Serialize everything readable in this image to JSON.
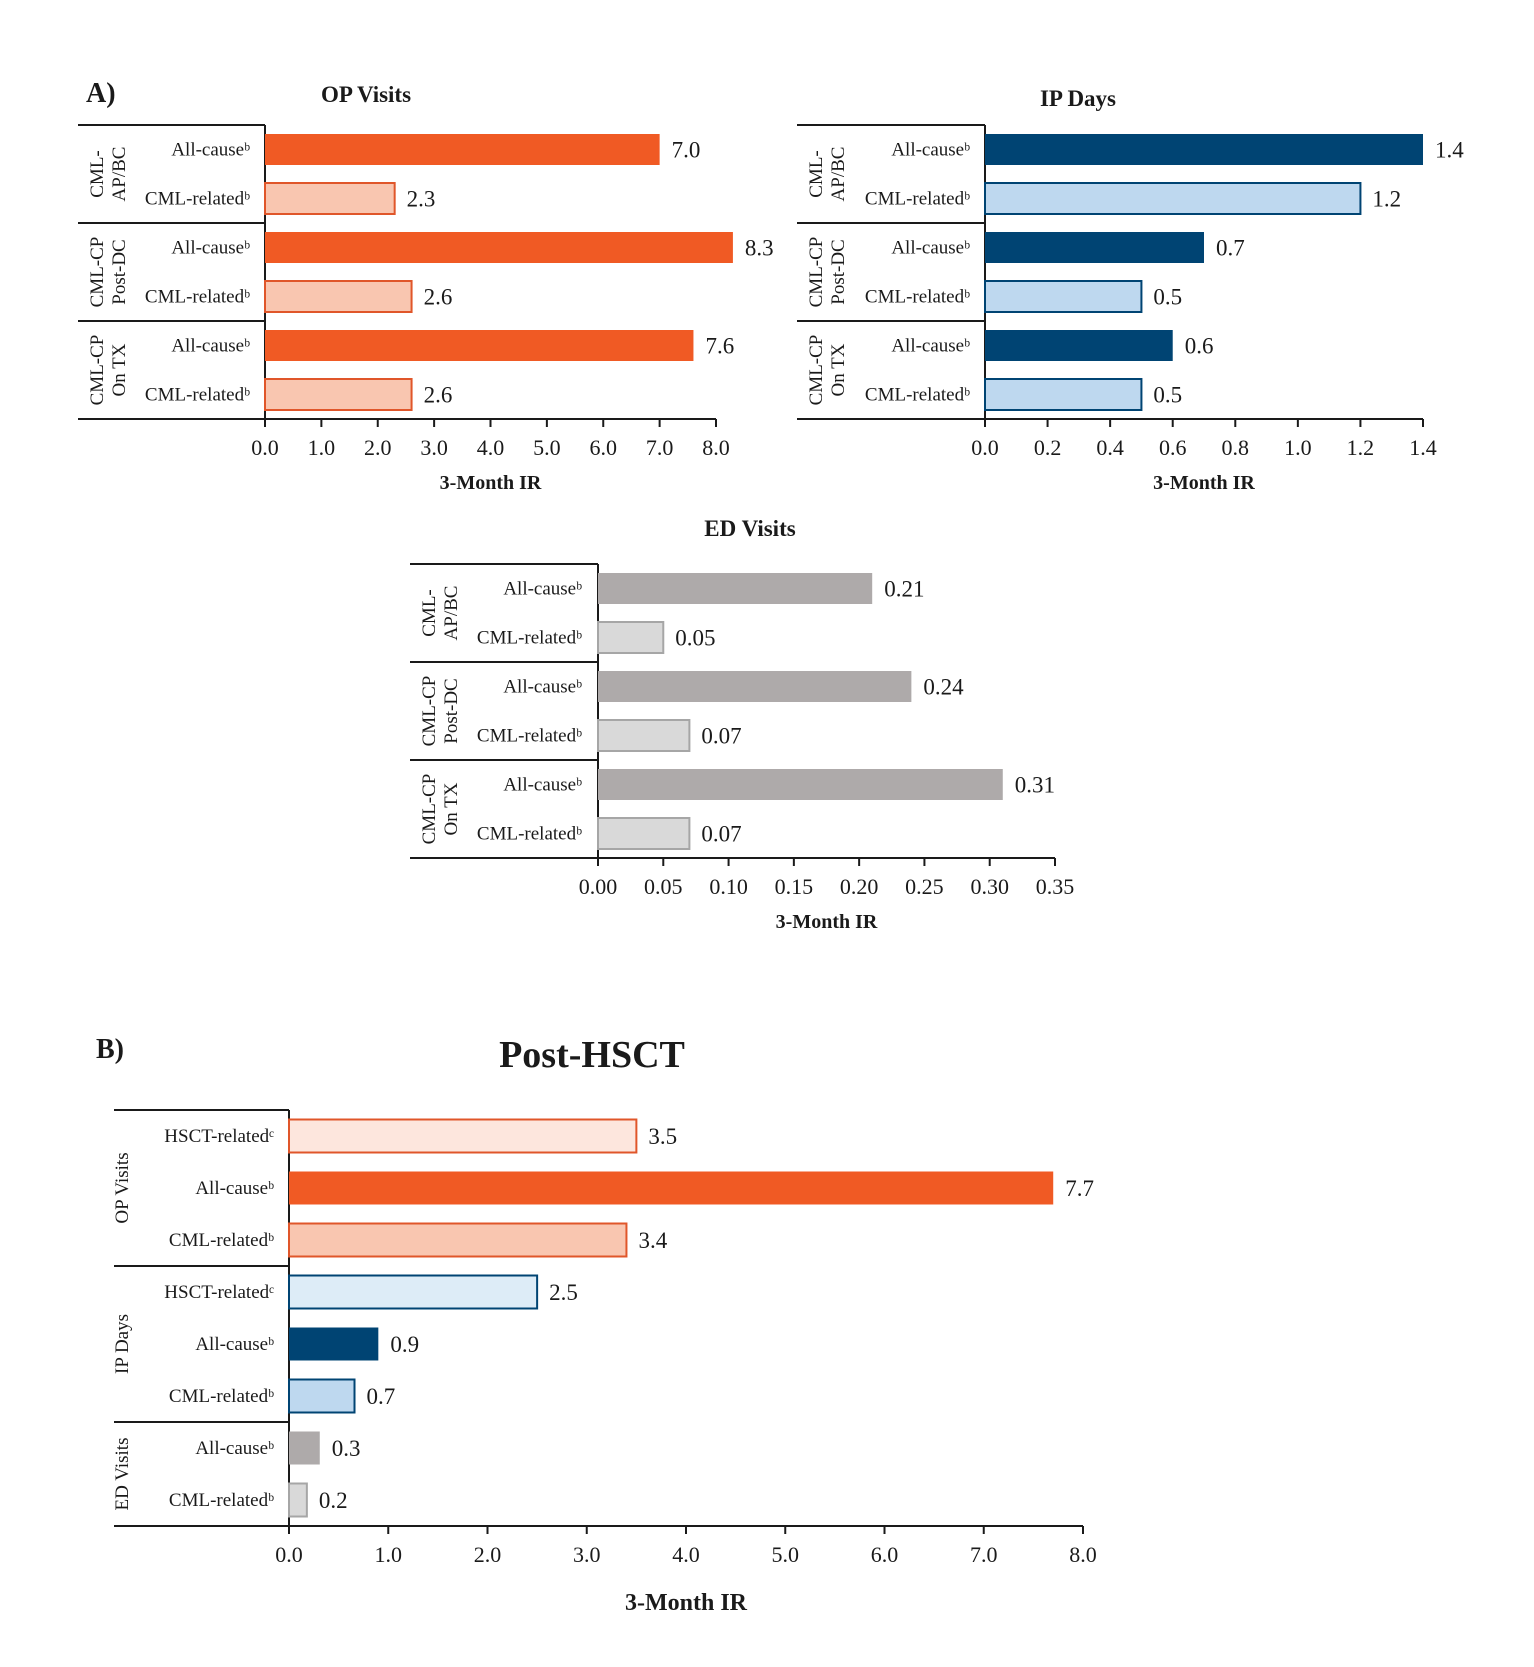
{
  "panel_a_label": "A)",
  "panel_b_label": "B)",
  "colors": {
    "op_dark": "#f05a24",
    "op_light": "#f9c6b0",
    "op_light_stroke": "#e0562a",
    "op_pale": "#fde6dd",
    "ip_dark": "#004473",
    "ip_light": "#bed8ef",
    "ip_light_stroke": "#004473",
    "ip_pale": "#ddecf7",
    "ed_dark": "#aeaaaa",
    "ed_light": "#d9d9d9",
    "ed_light_stroke": "#a6a6a6"
  },
  "chart_data": [
    {
      "id": "op",
      "type": "bar",
      "orientation": "horizontal",
      "title": "OP Visits",
      "xlabel": "3-Month IR",
      "xlim": [
        0,
        8.0
      ],
      "xticks": [
        "0.0",
        "1.0",
        "2.0",
        "3.0",
        "4.0",
        "5.0",
        "6.0",
        "7.0",
        "8.0"
      ],
      "groups": [
        {
          "label": [
            "CML-",
            "AP/BC"
          ],
          "bars": [
            {
              "label": "All-causeᵇ",
              "value": 7.0,
              "value_label": "7.0",
              "style": "dark"
            },
            {
              "label": "CML-relatedᵇ",
              "value": 2.3,
              "value_label": "2.3",
              "style": "light"
            }
          ]
        },
        {
          "label": [
            "CML-CP",
            "Post-DC"
          ],
          "bars": [
            {
              "label": "All-causeᵇ",
              "value": 8.3,
              "value_label": "8.3",
              "style": "dark"
            },
            {
              "label": "CML-relatedᵇ",
              "value": 2.6,
              "value_label": "2.6",
              "style": "light"
            }
          ]
        },
        {
          "label": [
            "CML-CP",
            "On TX"
          ],
          "bars": [
            {
              "label": "All-causeᵇ",
              "value": 7.6,
              "value_label": "7.6",
              "style": "dark"
            },
            {
              "label": "CML-relatedᵇ",
              "value": 2.6,
              "value_label": "2.6",
              "style": "light"
            }
          ]
        }
      ]
    },
    {
      "id": "ip",
      "type": "bar",
      "orientation": "horizontal",
      "title": "IP Days",
      "xlabel": "3-Month IR",
      "xlim": [
        0,
        1.4
      ],
      "xticks": [
        "0.0",
        "0.2",
        "0.4",
        "0.6",
        "0.8",
        "1.0",
        "1.2",
        "1.4"
      ],
      "groups": [
        {
          "label": [
            "CML-",
            "AP/BC"
          ],
          "bars": [
            {
              "label": "All-causeᵇ",
              "value": 1.4,
              "value_label": "1.4",
              "style": "dark"
            },
            {
              "label": "CML-relatedᵇ",
              "value": 1.2,
              "value_label": "1.2",
              "style": "light"
            }
          ]
        },
        {
          "label": [
            "CML-CP",
            "Post-DC"
          ],
          "bars": [
            {
              "label": "All-causeᵇ",
              "value": 0.7,
              "value_label": "0.7",
              "style": "dark"
            },
            {
              "label": "CML-relatedᵇ",
              "value": 0.5,
              "value_label": "0.5",
              "style": "light"
            }
          ]
        },
        {
          "label": [
            "CML-CP",
            "On TX"
          ],
          "bars": [
            {
              "label": "All-causeᵇ",
              "value": 0.6,
              "value_label": "0.6",
              "style": "dark"
            },
            {
              "label": "CML-relatedᵇ",
              "value": 0.5,
              "value_label": "0.5",
              "style": "light"
            }
          ]
        }
      ]
    },
    {
      "id": "ed",
      "type": "bar",
      "orientation": "horizontal",
      "title": "ED Visits",
      "xlabel": "3-Month IR",
      "xlim": [
        0,
        0.35
      ],
      "xticks": [
        "0.00",
        "0.05",
        "0.10",
        "0.15",
        "0.20",
        "0.25",
        "0.30",
        "0.35"
      ],
      "groups": [
        {
          "label": [
            "CML-",
            "AP/BC"
          ],
          "bars": [
            {
              "label": "All-causeᵇ",
              "value": 0.21,
              "value_label": "0.21",
              "style": "dark"
            },
            {
              "label": "CML-relatedᵇ",
              "value": 0.05,
              "value_label": "0.05",
              "style": "light"
            }
          ]
        },
        {
          "label": [
            "CML-CP",
            "Post-DC"
          ],
          "bars": [
            {
              "label": "All-causeᵇ",
              "value": 0.24,
              "value_label": "0.24",
              "style": "dark"
            },
            {
              "label": "CML-relatedᵇ",
              "value": 0.07,
              "value_label": "0.07",
              "style": "light"
            }
          ]
        },
        {
          "label": [
            "CML-CP",
            "On TX"
          ],
          "bars": [
            {
              "label": "All-causeᵇ",
              "value": 0.31,
              "value_label": "0.31",
              "style": "dark"
            },
            {
              "label": "CML-relatedᵇ",
              "value": 0.07,
              "value_label": "0.07",
              "style": "light"
            }
          ]
        }
      ]
    },
    {
      "id": "post_hsct",
      "type": "bar",
      "orientation": "horizontal",
      "title": "Post-HSCT",
      "xlabel": "3-Month IR",
      "xlim": [
        0,
        8.0
      ],
      "xticks": [
        "0.0",
        "1.0",
        "2.0",
        "3.0",
        "4.0",
        "5.0",
        "6.0",
        "7.0",
        "8.0"
      ],
      "groups": [
        {
          "label": [
            "OP Visits"
          ],
          "bars": [
            {
              "label": "HSCT-relatedᶜ",
              "value": 3.5,
              "value_label": "3.5",
              "color_key": "op",
              "style": "pale"
            },
            {
              "label": "All-causeᵇ",
              "value": 7.7,
              "value_label": "7.7",
              "color_key": "op",
              "style": "dark"
            },
            {
              "label": "CML-relatedᵇ",
              "value": 3.4,
              "value_label": "3.4",
              "color_key": "op",
              "style": "light"
            }
          ]
        },
        {
          "label": [
            "IP Days"
          ],
          "bars": [
            {
              "label": "HSCT-relatedᶜ",
              "value": 2.5,
              "value_label": "2.5",
              "color_key": "ip",
              "style": "pale"
            },
            {
              "label": "All-causeᵇ",
              "value": 0.9,
              "value_label": "0.9",
              "color_key": "ip",
              "style": "dark"
            },
            {
              "label": "CML-relatedᵇ",
              "value": 0.66,
              "value_label": "0.7",
              "color_key": "ip",
              "style": "light"
            }
          ]
        },
        {
          "label": [
            "ED Visits"
          ],
          "bars": [
            {
              "label": "All-causeᵇ",
              "value": 0.31,
              "value_label": "0.3",
              "color_key": "ed",
              "style": "dark"
            },
            {
              "label": "CML-relatedᵇ",
              "value": 0.18,
              "value_label": "0.2",
              "color_key": "ed",
              "style": "light"
            }
          ]
        }
      ]
    }
  ]
}
